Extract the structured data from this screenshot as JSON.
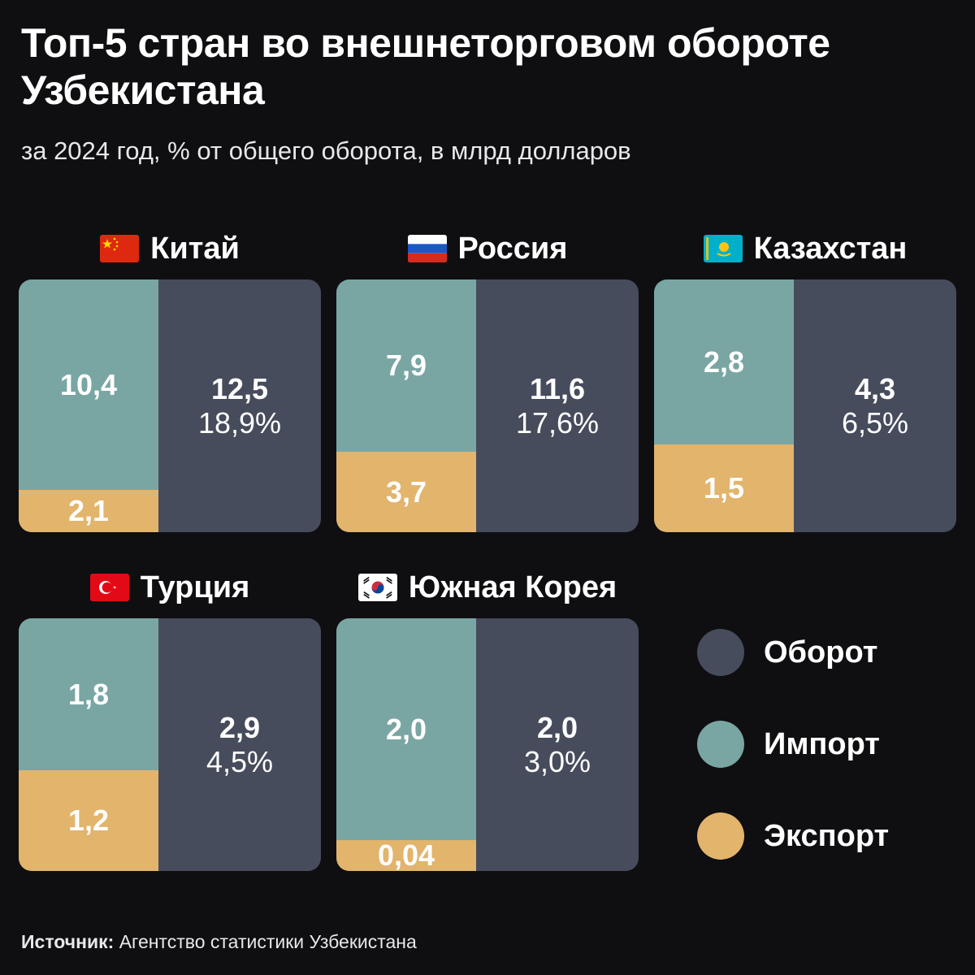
{
  "title": "Топ-5 стран во внешнеторговом обороте Узбекистана",
  "subtitle": "за 2024 год, % от общего оборота, в млрд долларов",
  "legend": {
    "turnover": "Оборот",
    "import": "Импорт",
    "export": "Экспорт"
  },
  "colors": {
    "background": "#0f0f12",
    "turnover": "#474c5c",
    "import": "#79a6a3",
    "export": "#e2b46c"
  },
  "source": {
    "label": "Источник:",
    "text": "Агентство статистики Узбекистана"
  },
  "chart_data": {
    "type": "bar",
    "units": "млрд долларов",
    "categories": [
      "Китай",
      "Россия",
      "Казахстан",
      "Турция",
      "Южная Корея"
    ],
    "series": [
      {
        "name": "Импорт",
        "values": [
          10.4,
          7.9,
          2.8,
          1.8,
          2.0
        ],
        "labels": [
          "10,4",
          "7,9",
          "2,8",
          "1,8",
          "2,0"
        ]
      },
      {
        "name": "Экспорт",
        "values": [
          2.1,
          3.7,
          1.5,
          1.2,
          0.04
        ],
        "labels": [
          "2,1",
          "3,7",
          "1,5",
          "1,2",
          "0,04"
        ]
      },
      {
        "name": "Оборот",
        "values": [
          12.5,
          11.6,
          4.3,
          2.9,
          2.0
        ],
        "labels": [
          "12,5",
          "11,6",
          "4,3",
          "2,9",
          "2,0"
        ]
      }
    ],
    "share_of_total": {
      "values": [
        18.9,
        17.6,
        6.5,
        4.5,
        3.0
      ],
      "labels": [
        "18,9%",
        "17,6%",
        "6,5%",
        "4,5%",
        "3,0%"
      ]
    },
    "flags": [
      "china-flag-icon",
      "russia-flag-icon",
      "kazakhstan-flag-icon",
      "turkey-flag-icon",
      "south-korea-flag-icon"
    ]
  }
}
